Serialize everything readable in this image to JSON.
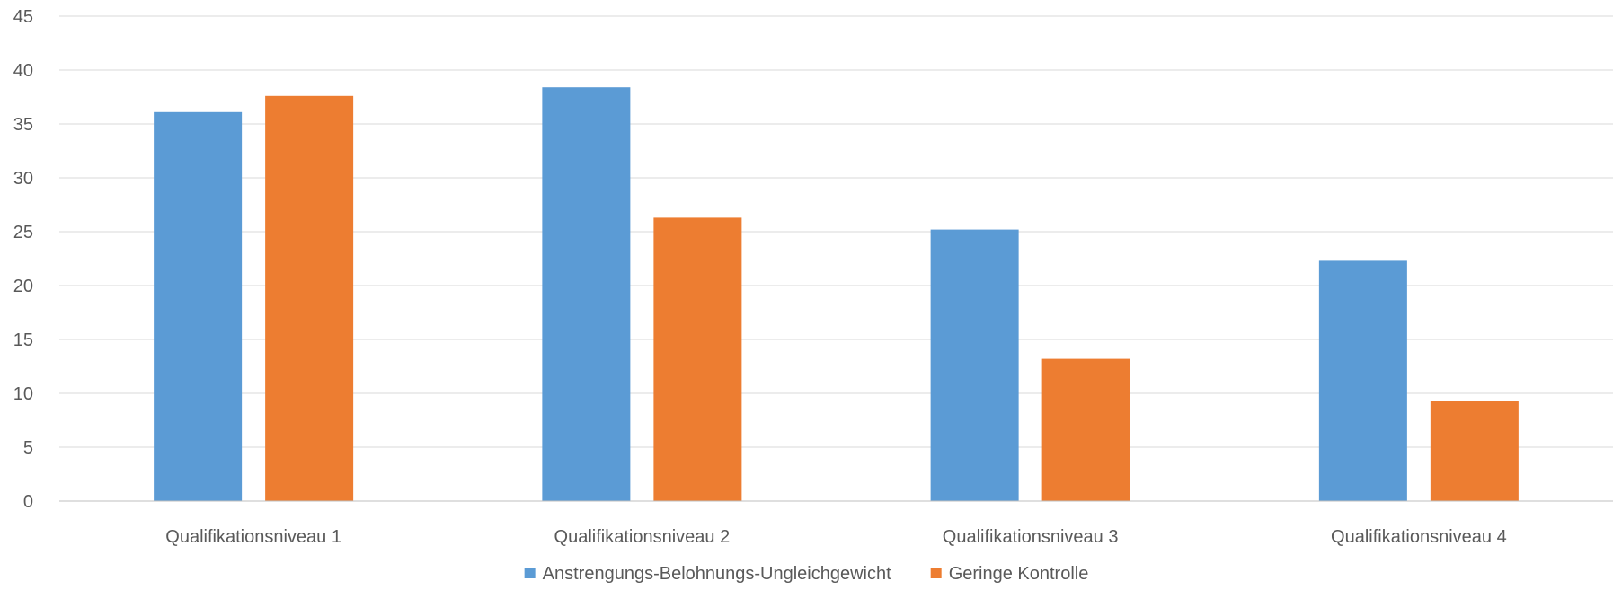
{
  "chart_data": {
    "type": "bar",
    "categories": [
      "Qualifikationsniveau 1",
      "Qualifikationsniveau 2",
      "Qualifikationsniveau 3",
      "Qualifikationsniveau 4"
    ],
    "series": [
      {
        "name": "Anstrengungs-Belohnungs-Ungleichgewicht",
        "color": "#5b9bd5",
        "values": [
          36.1,
          38.4,
          25.2,
          22.3
        ]
      },
      {
        "name": "Geringe Kontrolle",
        "color": "#ed7d31",
        "values": [
          37.6,
          26.3,
          13.2,
          9.3
        ]
      }
    ],
    "title": "",
    "xlabel": "",
    "ylabel": "",
    "ylim": [
      0,
      45
    ],
    "yticks": [
      "0",
      "5",
      "10",
      "15",
      "20",
      "25",
      "30",
      "35",
      "40",
      "45"
    ],
    "grid": true,
    "legend_position": "bottom"
  }
}
